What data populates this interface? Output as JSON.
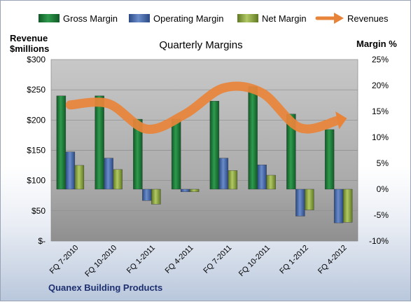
{
  "chart_data": {
    "type": "bar",
    "title": "Quarterly Margins",
    "footer": "Quanex Building Products",
    "y_left_label_line1": "Revenue",
    "y_left_label_line2": "$millions",
    "y_right_label": "Margin %",
    "y_left_ticks": [
      "$-",
      "$50",
      "$100",
      "$150",
      "$200",
      "$250",
      "$300"
    ],
    "y_right_ticks": [
      "-10%",
      "-5%",
      "0%",
      "5%",
      "10%",
      "15%",
      "20%",
      "25%"
    ],
    "ylim_left": [
      0,
      300
    ],
    "ylim_right": [
      -10,
      25
    ],
    "grid": true,
    "legend_position": "top",
    "categories": [
      "FQ 7-2010",
      "FQ 10-2010",
      "FQ 1-2011",
      "FQ 4-2011",
      "FQ 7-2011",
      "FQ 10-2011",
      "FQ 1-2012",
      "FQ 4-2012"
    ],
    "series": [
      {
        "name": "Gross Margin",
        "axis": "right",
        "kind": "bar",
        "color": "#1e7b3a",
        "values": [
          18.0,
          18.0,
          13.5,
          13.5,
          17.0,
          19.8,
          14.5,
          11.5
        ]
      },
      {
        "name": "Operating Margin",
        "axis": "right",
        "kind": "bar",
        "color": "#3f64a8",
        "values": [
          7.2,
          6.0,
          -2.2,
          -0.5,
          6.0,
          4.7,
          -5.2,
          -6.5
        ]
      },
      {
        "name": "Net Margin",
        "axis": "right",
        "kind": "bar",
        "color": "#8aa43a",
        "values": [
          4.6,
          3.8,
          -2.9,
          -0.5,
          3.6,
          2.7,
          -4.0,
          -6.4
        ]
      },
      {
        "name": "Revenues",
        "axis": "left",
        "kind": "line",
        "color": "#e8843a",
        "values": [
          225,
          227,
          185,
          210,
          253,
          245,
          187,
          200
        ]
      }
    ]
  }
}
